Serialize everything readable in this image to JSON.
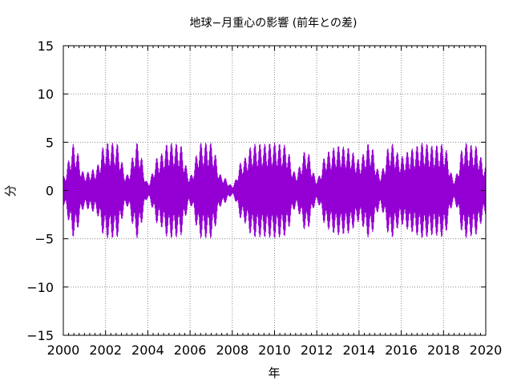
{
  "chart_data": {
    "type": "line",
    "title": "地球−月重心の影響 (前年との差)",
    "xlabel": "年",
    "ylabel": "分",
    "xlim": [
      2000,
      2020
    ],
    "ylim": [
      -15,
      15
    ],
    "x_ticks": [
      "2000",
      "2002",
      "2004",
      "2006",
      "2008",
      "2010",
      "2012",
      "2014",
      "2016",
      "2018",
      "2020"
    ],
    "y_ticks": [
      "15",
      "10",
      "5",
      "0",
      "−5",
      "−10",
      "−15"
    ],
    "grid": true,
    "series": [
      {
        "color": "#9400d3",
        "amplitude_envelope": {
          "x": [
            2000.0,
            2000.5,
            2001.0,
            2001.5,
            2002.0,
            2002.5,
            2003.0,
            2003.5,
            2004.0,
            2004.5,
            2005.0,
            2005.5,
            2006.0,
            2006.5,
            2007.0,
            2007.5,
            2008.0,
            2008.5,
            2009.0,
            2009.5,
            2010.0,
            2010.5,
            2011.0,
            2011.5,
            2012.0,
            2012.5,
            2013.0,
            2013.5,
            2014.0,
            2014.5,
            2015.0,
            2015.5,
            2016.0,
            2016.5,
            2017.0,
            2017.5,
            2018.0,
            2018.5,
            2019.0,
            2019.5,
            2020.0
          ],
          "y": [
            1.5,
            4.8,
            1.8,
            2.2,
            4.9,
            4.9,
            1.6,
            4.9,
            0.8,
            3.5,
            4.9,
            4.8,
            1.5,
            4.9,
            4.9,
            1.5,
            0.5,
            3.2,
            4.8,
            4.8,
            4.9,
            4.7,
            1.8,
            4.2,
            1.2,
            4.0,
            4.6,
            4.4,
            3.2,
            4.9,
            1.8,
            4.9,
            3.5,
            4.3,
            4.9,
            4.6,
            4.8,
            1.2,
            4.9,
            4.6,
            2.5
          ]
        }
      }
    ]
  }
}
